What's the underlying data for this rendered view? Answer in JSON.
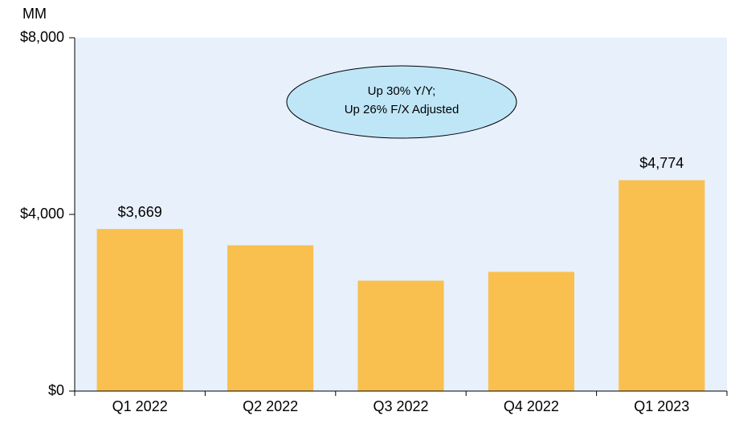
{
  "chart_data": {
    "type": "bar",
    "y_axis_label": "MM",
    "annotation": [
      "Up 30% Y/Y;",
      "Up 26% F/X Adjusted"
    ],
    "categories": [
      "Q1 2022",
      "Q2 2022",
      "Q3 2022",
      "Q4 2022",
      "Q1 2023"
    ],
    "values": [
      3669,
      3300,
      2500,
      2700,
      4774
    ],
    "value_labels": [
      "$3,669",
      null,
      null,
      null,
      "$4,774"
    ],
    "color": "#f9c04f",
    "ylim": [
      0,
      8000
    ],
    "yticks": [
      {
        "value": 0,
        "label": "$0"
      },
      {
        "value": 4000,
        "label": "$4,000"
      },
      {
        "value": 8000,
        "label": "$8,000"
      }
    ],
    "plot_background": "#e8f0fc"
  }
}
